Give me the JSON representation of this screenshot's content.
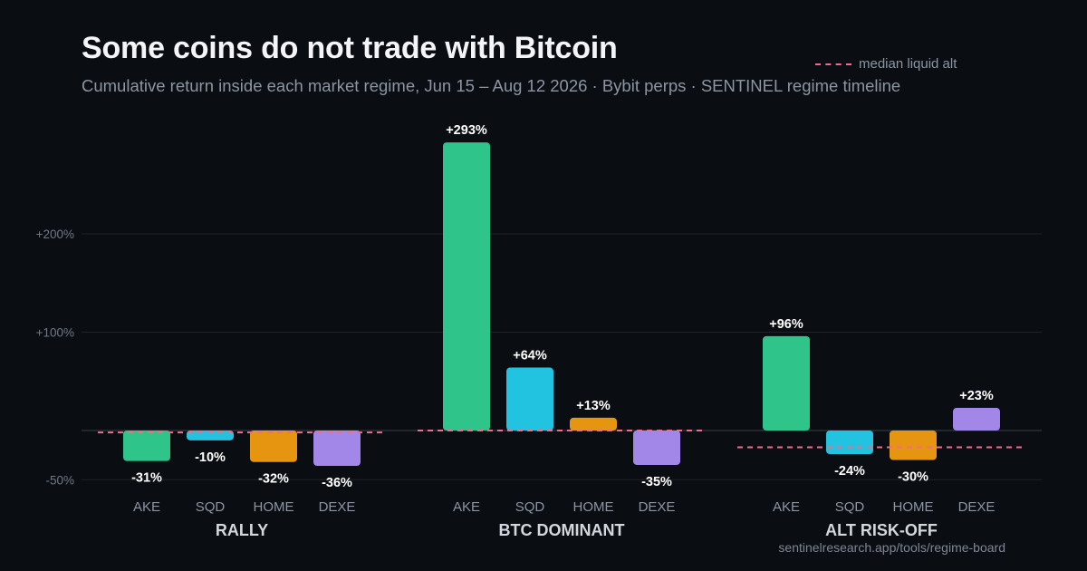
{
  "title": "Some coins do not trade with Bitcoin",
  "subtitle": "Cumulative return inside each market regime, Jun 15 – Aug 12 2026 · Bybit perps · SENTINEL regime timeline",
  "legend": {
    "median_label": "median liquid alt"
  },
  "footer": "sentinelresearch.app/tools/regime-board",
  "colors": {
    "AKE": "#2ec48a",
    "SQD": "#22c3e0",
    "HOME": "#e5950f",
    "DEXE": "#a387e8",
    "median": "#f06d8a",
    "grid": "#1e232b",
    "baseline": "#2a3038"
  },
  "chart_data": {
    "type": "bar",
    "ylabel": "",
    "xlabel": "",
    "yticks": [
      {
        "value": 200,
        "label": "+200%"
      },
      {
        "value": 100,
        "label": "+100%"
      },
      {
        "value": -50,
        "label": "-50%"
      }
    ],
    "ylim": [
      -60,
      310
    ],
    "coins": [
      "AKE",
      "SQD",
      "HOME",
      "DEXE"
    ],
    "groups": [
      {
        "name": "RALLY",
        "median": -2,
        "bars": [
          {
            "coin": "AKE",
            "value": -31,
            "label": "-31%"
          },
          {
            "coin": "SQD",
            "value": -10,
            "label": "-10%"
          },
          {
            "coin": "HOME",
            "value": -32,
            "label": "-32%"
          },
          {
            "coin": "DEXE",
            "value": -36,
            "label": "-36%"
          }
        ]
      },
      {
        "name": "BTC DOMINANT",
        "median": 0,
        "bars": [
          {
            "coin": "AKE",
            "value": 293,
            "label": "+293%"
          },
          {
            "coin": "SQD",
            "value": 64,
            "label": "+64%"
          },
          {
            "coin": "HOME",
            "value": 13,
            "label": "+13%"
          },
          {
            "coin": "DEXE",
            "value": -35,
            "label": "-35%"
          }
        ]
      },
      {
        "name": "ALT RISK-OFF",
        "median": -17,
        "bars": [
          {
            "coin": "AKE",
            "value": 96,
            "label": "+96%"
          },
          {
            "coin": "SQD",
            "value": -24,
            "label": "-24%"
          },
          {
            "coin": "HOME",
            "value": -30,
            "label": "-30%"
          },
          {
            "coin": "DEXE",
            "value": 23,
            "label": "+23%"
          }
        ]
      }
    ]
  }
}
